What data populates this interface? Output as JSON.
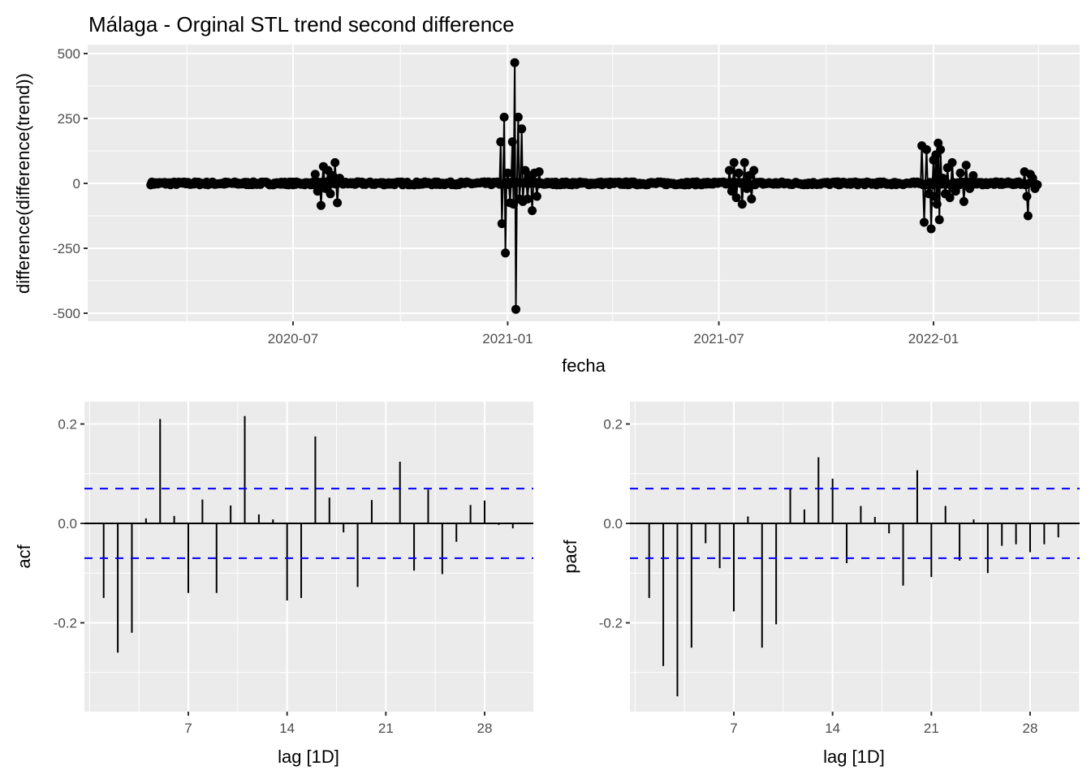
{
  "chart_data": [
    {
      "type": "line",
      "title": "Málaga - Orginal STL trend second difference",
      "xlabel": "fecha",
      "ylabel": "difference(difference(trend))",
      "x_range": [
        "2020-03-01",
        "2022-03-31"
      ],
      "ylim": [
        -520,
        520
      ],
      "y_ticks": [
        500,
        250,
        0,
        -250,
        -500
      ],
      "y_tick_labels": [
        "500",
        "250",
        "0",
        "-250",
        "-500"
      ],
      "x_ticks": [
        "2020-07-01",
        "2021-01-01",
        "2021-07-01",
        "2022-01-01"
      ],
      "x_tick_labels": [
        "2020-07",
        "2021-01",
        "2021-07",
        "2022-01"
      ],
      "grid": true,
      "markers": true,
      "series_color": "#000000",
      "spikes": [
        {
          "date": "2020-07-20",
          "value": 35
        },
        {
          "date": "2020-07-22",
          "value": -30
        },
        {
          "date": "2020-07-25",
          "value": -85
        },
        {
          "date": "2020-07-27",
          "value": 65
        },
        {
          "date": "2020-07-29",
          "value": -20
        },
        {
          "date": "2020-07-31",
          "value": 50
        },
        {
          "date": "2020-08-02",
          "value": -40
        },
        {
          "date": "2020-08-04",
          "value": 30
        },
        {
          "date": "2020-08-06",
          "value": 80
        },
        {
          "date": "2020-08-08",
          "value": -75
        },
        {
          "date": "2020-08-10",
          "value": 20
        },
        {
          "date": "2020-12-26",
          "value": 160
        },
        {
          "date": "2020-12-27",
          "value": -155
        },
        {
          "date": "2020-12-29",
          "value": 255
        },
        {
          "date": "2020-12-30",
          "value": -268
        },
        {
          "date": "2021-01-01",
          "value": 40
        },
        {
          "date": "2021-01-03",
          "value": -75
        },
        {
          "date": "2021-01-05",
          "value": 160
        },
        {
          "date": "2021-01-06",
          "value": -80
        },
        {
          "date": "2021-01-07",
          "value": 465
        },
        {
          "date": "2021-01-08",
          "value": -485
        },
        {
          "date": "2021-01-10",
          "value": 255
        },
        {
          "date": "2021-01-11",
          "value": -60
        },
        {
          "date": "2021-01-13",
          "value": 210
        },
        {
          "date": "2021-01-14",
          "value": -70
        },
        {
          "date": "2021-01-16",
          "value": 50
        },
        {
          "date": "2021-01-18",
          "value": -60
        },
        {
          "date": "2021-01-20",
          "value": 30
        },
        {
          "date": "2021-01-22",
          "value": -105
        },
        {
          "date": "2021-01-24",
          "value": 40
        },
        {
          "date": "2021-01-26",
          "value": -50
        },
        {
          "date": "2021-01-28",
          "value": 45
        },
        {
          "date": "2021-07-10",
          "value": 50
        },
        {
          "date": "2021-07-12",
          "value": -30
        },
        {
          "date": "2021-07-14",
          "value": 80
        },
        {
          "date": "2021-07-16",
          "value": -55
        },
        {
          "date": "2021-07-18",
          "value": 40
        },
        {
          "date": "2021-07-21",
          "value": -80
        },
        {
          "date": "2021-07-23",
          "value": 80
        },
        {
          "date": "2021-07-25",
          "value": -20
        },
        {
          "date": "2021-07-27",
          "value": 30
        },
        {
          "date": "2021-07-29",
          "value": -60
        },
        {
          "date": "2021-07-31",
          "value": 50
        },
        {
          "date": "2021-12-22",
          "value": 145
        },
        {
          "date": "2021-12-24",
          "value": -150
        },
        {
          "date": "2021-12-26",
          "value": 130
        },
        {
          "date": "2021-12-28",
          "value": -40
        },
        {
          "date": "2021-12-30",
          "value": -175
        },
        {
          "date": "2022-01-01",
          "value": 90
        },
        {
          "date": "2022-01-02",
          "value": -50
        },
        {
          "date": "2022-01-03",
          "value": 110
        },
        {
          "date": "2022-01-04",
          "value": -80
        },
        {
          "date": "2022-01-05",
          "value": 155
        },
        {
          "date": "2022-01-06",
          "value": -140
        },
        {
          "date": "2022-01-07",
          "value": 130
        },
        {
          "date": "2022-01-09",
          "value": 20
        },
        {
          "date": "2022-01-11",
          "value": -40
        },
        {
          "date": "2022-01-13",
          "value": 60
        },
        {
          "date": "2022-01-15",
          "value": -55
        },
        {
          "date": "2022-01-17",
          "value": 80
        },
        {
          "date": "2022-01-20",
          "value": -30
        },
        {
          "date": "2022-01-24",
          "value": 40
        },
        {
          "date": "2022-01-27",
          "value": -70
        },
        {
          "date": "2022-01-29",
          "value": 70
        },
        {
          "date": "2022-02-01",
          "value": -20
        },
        {
          "date": "2022-02-04",
          "value": 30
        },
        {
          "date": "2022-03-20",
          "value": 45
        },
        {
          "date": "2022-03-22",
          "value": -50
        },
        {
          "date": "2022-03-23",
          "value": -125
        },
        {
          "date": "2022-03-25",
          "value": 35
        },
        {
          "date": "2022-03-27",
          "value": 20
        },
        {
          "date": "2022-03-29",
          "value": -20
        }
      ]
    },
    {
      "type": "bar",
      "title": "",
      "xlabel": "lag [1D]",
      "ylabel": "acf",
      "x_range": [
        0,
        31
      ],
      "ylim": [
        -0.37,
        0.245
      ],
      "y_ticks": [
        0.2,
        0.0,
        -0.2
      ],
      "y_tick_labels": [
        "0.2",
        "0.0",
        "-0.2"
      ],
      "x_ticks": [
        7,
        14,
        21,
        28
      ],
      "x_tick_labels": [
        "7",
        "14",
        "21",
        "28"
      ],
      "ci": 0.07,
      "ci_color": "#0000ff",
      "lags": [
        1,
        2,
        3,
        4,
        5,
        6,
        7,
        8,
        9,
        10,
        11,
        12,
        13,
        14,
        15,
        16,
        17,
        18,
        19,
        20,
        21,
        22,
        23,
        24,
        25,
        26,
        27,
        28,
        29,
        30
      ],
      "values": [
        -0.15,
        -0.26,
        -0.22,
        0.01,
        0.21,
        0.015,
        -0.14,
        0.048,
        -0.14,
        0.036,
        0.216,
        0.018,
        0.008,
        -0.155,
        -0.15,
        0.175,
        0.052,
        -0.018,
        -0.128,
        0.047,
        0.002,
        0.124,
        -0.095,
        0.068,
        -0.102,
        -0.037,
        0.037,
        0.046,
        -0.003,
        -0.01
      ]
    },
    {
      "type": "bar",
      "title": "",
      "xlabel": "lag [1D]",
      "ylabel": "pacf",
      "x_range": [
        0,
        31
      ],
      "ylim": [
        -0.37,
        0.245
      ],
      "y_ticks": [
        0.2,
        0.0,
        -0.2
      ],
      "y_tick_labels": [
        "0.2",
        "0.0",
        "-0.2"
      ],
      "x_ticks": [
        7,
        14,
        21,
        28
      ],
      "x_tick_labels": [
        "7",
        "14",
        "21",
        "28"
      ],
      "ci": 0.07,
      "ci_color": "#0000ff",
      "lags": [
        1,
        2,
        3,
        4,
        5,
        6,
        7,
        8,
        9,
        10,
        11,
        12,
        13,
        14,
        15,
        16,
        17,
        18,
        19,
        20,
        21,
        22,
        23,
        24,
        25,
        26,
        27,
        28,
        29,
        30
      ],
      "values": [
        -0.15,
        -0.287,
        -0.348,
        -0.25,
        -0.04,
        -0.09,
        -0.177,
        0.014,
        -0.25,
        -0.203,
        0.07,
        0.028,
        0.133,
        0.09,
        -0.08,
        0.035,
        0.013,
        -0.02,
        -0.125,
        0.107,
        -0.108,
        0.035,
        -0.075,
        0.008,
        -0.1,
        -0.045,
        -0.042,
        -0.058,
        -0.042,
        -0.028
      ]
    }
  ]
}
